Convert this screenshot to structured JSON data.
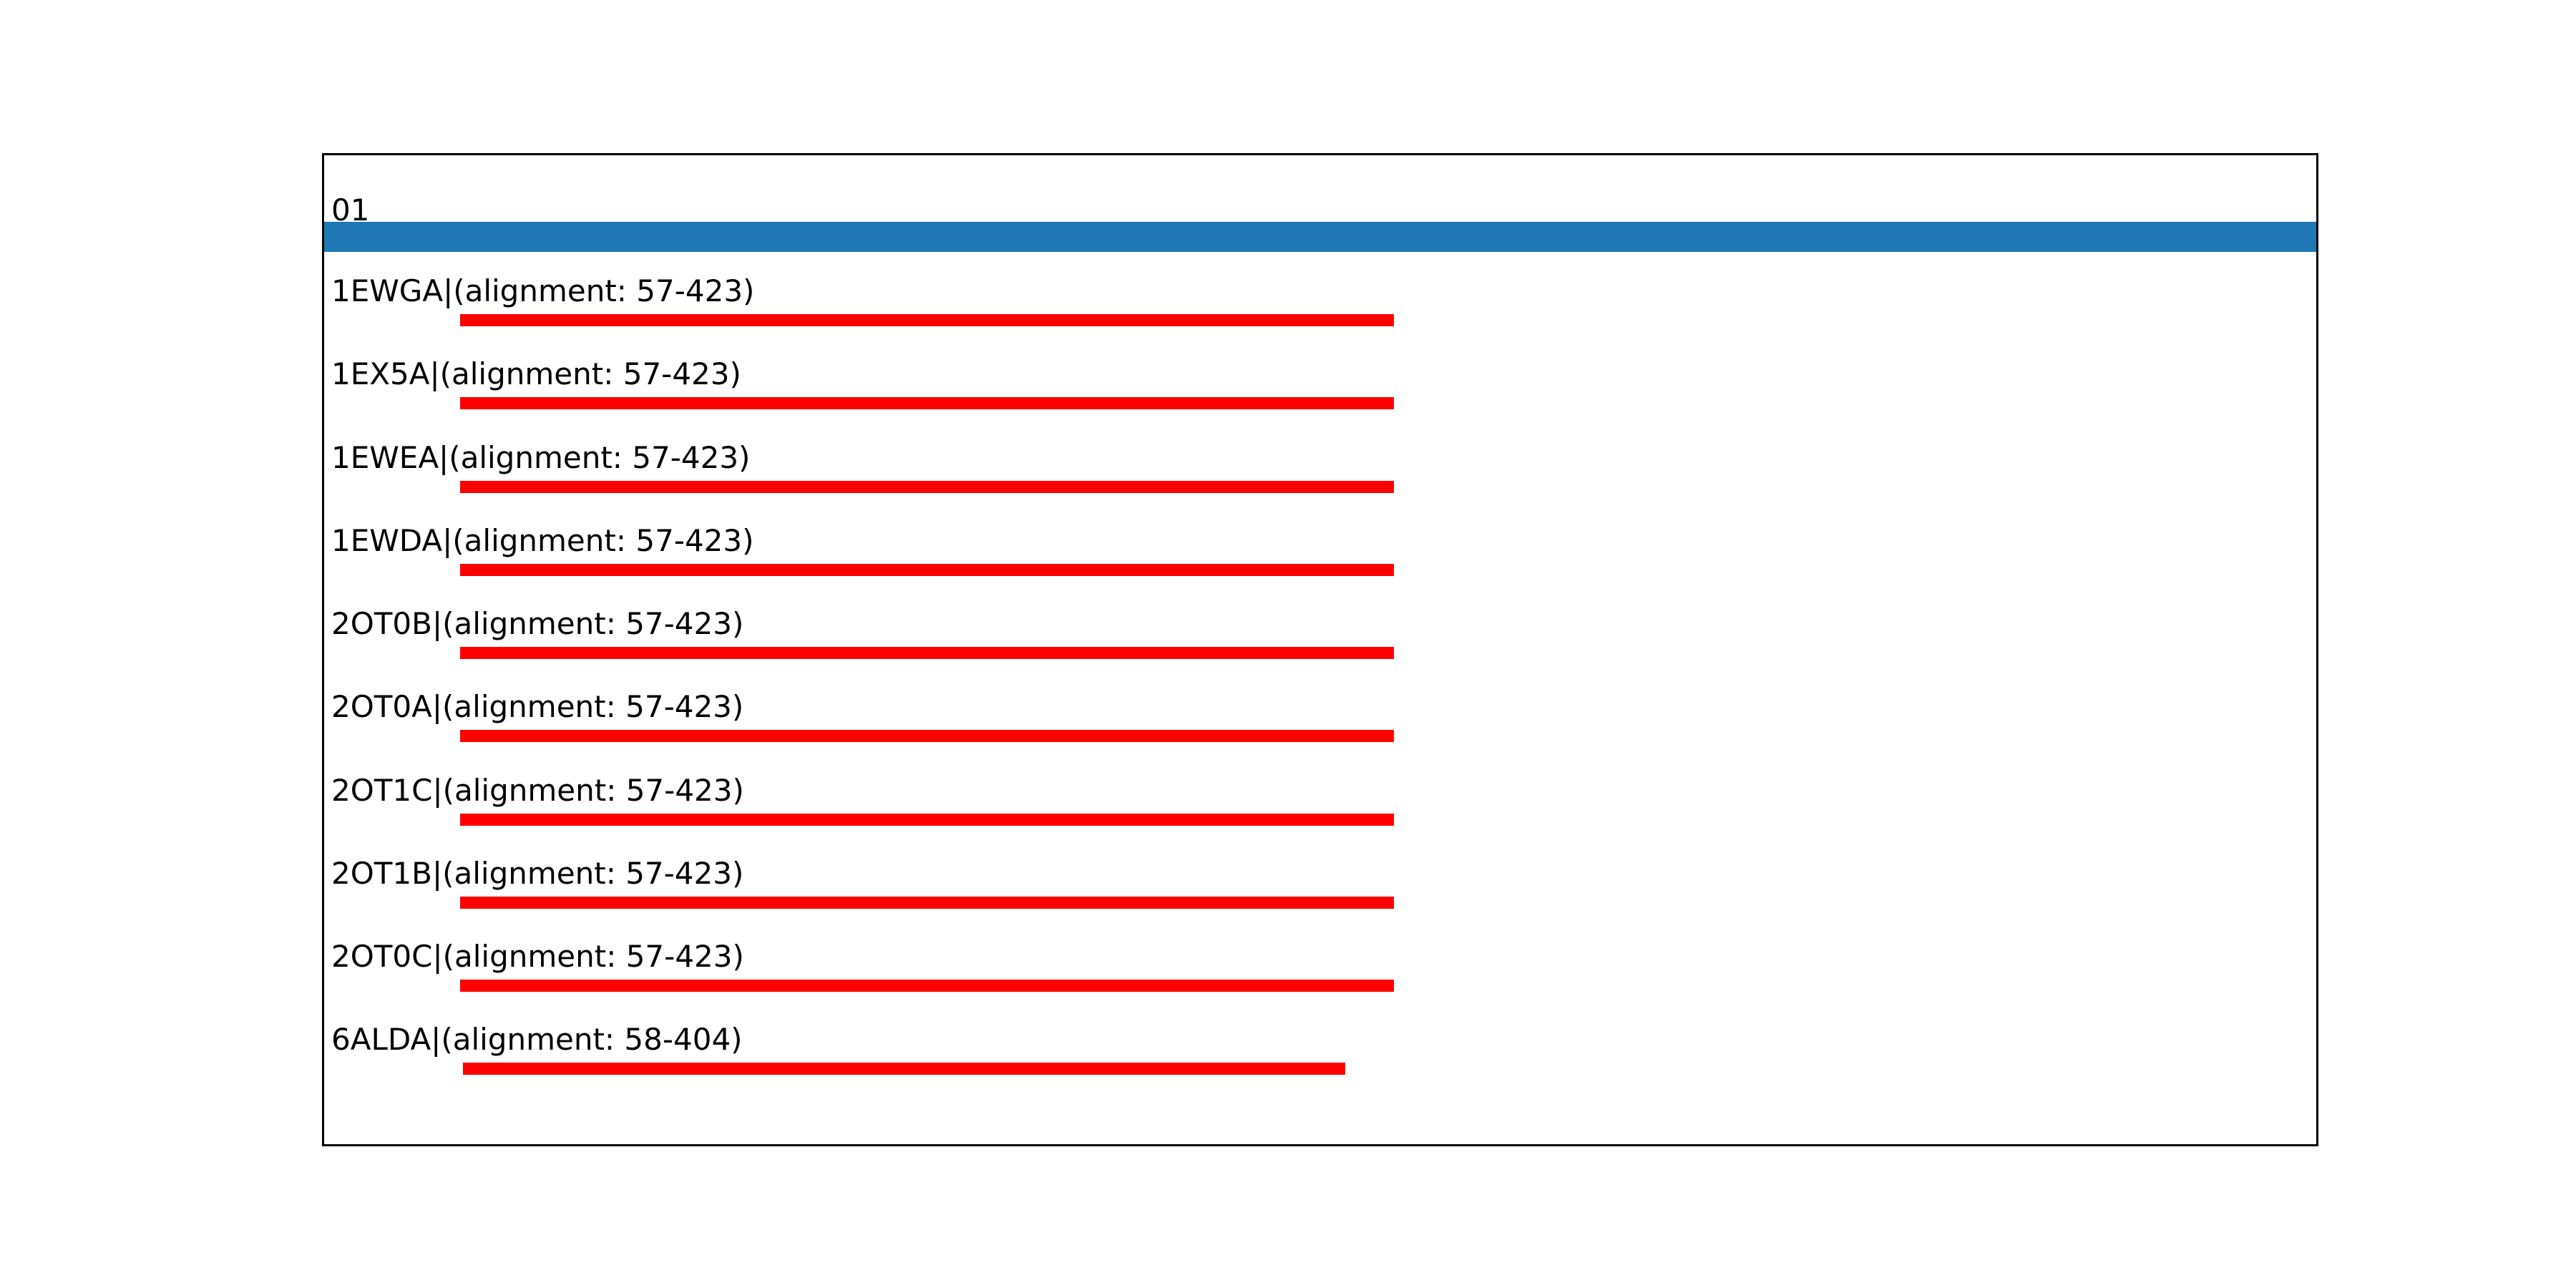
{
  "chart_data": {
    "type": "bar",
    "subtype": "sequence-alignment-tracks",
    "title": "01",
    "query_track": {
      "label": "01",
      "color": "#1f77b4",
      "full_width": true
    },
    "hit_color": "#ff0000",
    "background_color": "#ffffff",
    "frame_color": "#000000",
    "legend": "none",
    "grid": false,
    "hits": [
      {
        "id": "1EWGA",
        "label": "1EWGA|(alignment: 57-423)",
        "start": 57,
        "end": 423
      },
      {
        "id": "1EX5A",
        "label": "1EX5A|(alignment: 57-423)",
        "start": 57,
        "end": 423
      },
      {
        "id": "1EWEA",
        "label": "1EWEA|(alignment: 57-423)",
        "start": 57,
        "end": 423
      },
      {
        "id": "1EWDA",
        "label": "1EWDA|(alignment: 57-423)",
        "start": 57,
        "end": 423
      },
      {
        "id": "2OT0B",
        "label": "2OT0B|(alignment: 57-423)",
        "start": 57,
        "end": 423
      },
      {
        "id": "2OT0A",
        "label": "2OT0A|(alignment: 57-423)",
        "start": 57,
        "end": 423
      },
      {
        "id": "2OT1C",
        "label": "2OT1C|(alignment: 57-423)",
        "start": 57,
        "end": 423
      },
      {
        "id": "2OT1B",
        "label": "2OT1B|(alignment: 57-423)",
        "start": 57,
        "end": 423
      },
      {
        "id": "2OT0C",
        "label": "2OT0C|(alignment: 57-423)",
        "start": 57,
        "end": 423
      },
      {
        "id": "6ALDA",
        "label": "6ALDA|(alignment: 58-404)",
        "start": 58,
        "end": 404
      }
    ]
  }
}
